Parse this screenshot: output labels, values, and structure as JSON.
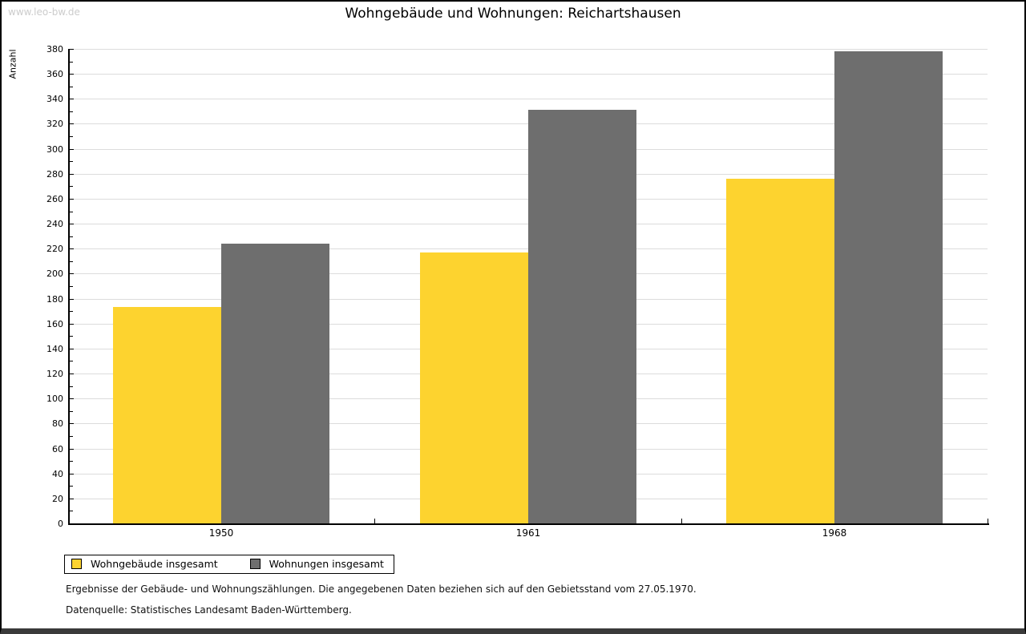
{
  "watermark": "www.leo-bw.de",
  "chart_data": {
    "type": "bar",
    "title": "Wohngebäude und Wohnungen: Reichartshausen",
    "categories": [
      "1950",
      "1961",
      "1968"
    ],
    "series": [
      {
        "name": "Wohngebäude insgesamt",
        "color": "#FDD32F",
        "values": [
          173,
          217,
          276
        ]
      },
      {
        "name": "Wohnungen insgesamt",
        "color": "#6E6E6E",
        "values": [
          224,
          331,
          378
        ]
      }
    ],
    "xlabel": "",
    "ylabel": "Anzahl",
    "ylim": [
      0,
      380
    ],
    "ytick_step": 20,
    "minor_tick_step": 10,
    "grid": true,
    "gridline_color": "#dcdcdc",
    "legend_position": "bottom-left"
  },
  "footnotes": [
    "Ergebnisse der Gebäude- und Wohnungszählungen. Die angegebenen Daten beziehen sich auf den Gebietsstand vom 27.05.1970.",
    "Datenquelle: Statistisches Landesamt Baden-Württemberg."
  ]
}
